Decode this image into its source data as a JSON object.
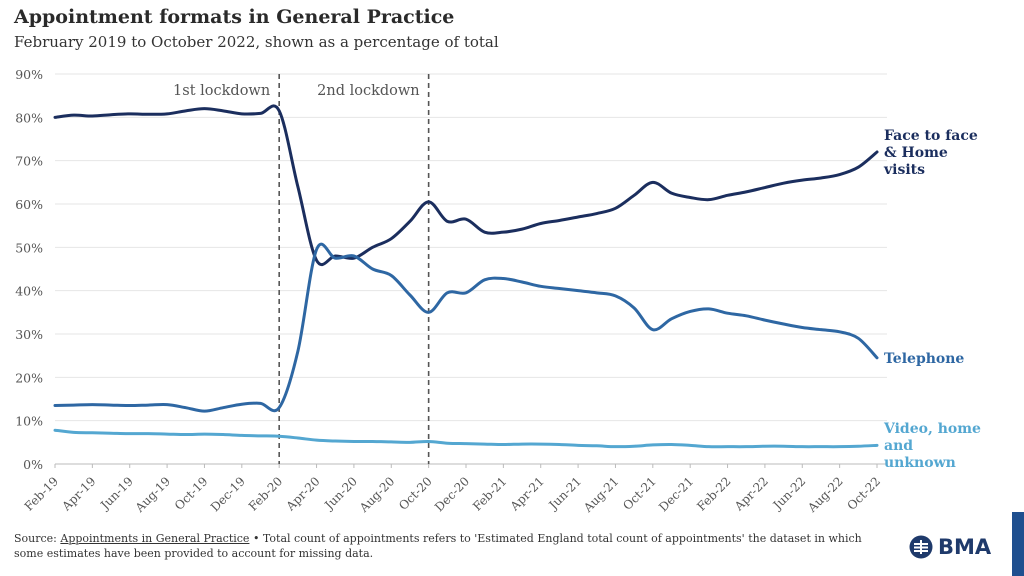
{
  "header": {
    "title": "Appointment formats in General Practice",
    "subtitle": "February 2019 to October 2022, shown as a percentage of total"
  },
  "footer": {
    "source_prefix": "Source: ",
    "source_link": "Appointments in General Practice",
    "source_rest": " • Total count of appointments refers to 'Estimated England total count of appointments' the dataset in which some estimates have been provided to account for missing data."
  },
  "logo": {
    "text": "BMA"
  },
  "colors": {
    "face_to_face": "#1b2e5e",
    "telephone": "#2e67a3",
    "video": "#54a7d1",
    "axis_text": "#555555",
    "grid": "#e6e6e6",
    "lockdown_line": "#555555"
  },
  "chart_data": {
    "type": "line",
    "title": "Appointment formats in General Practice",
    "subtitle": "February 2019 to October 2022, shown as a percentage of total",
    "xlabel": "",
    "ylabel": "",
    "ylim": [
      0,
      90
    ],
    "yticks": [
      0,
      10,
      20,
      30,
      40,
      50,
      60,
      70,
      80,
      90
    ],
    "ytick_labels": [
      "0%",
      "10%",
      "20%",
      "30%",
      "40%",
      "50%",
      "60%",
      "70%",
      "80%",
      "90%"
    ],
    "x_tick_labels": [
      "Feb-19",
      "Apr-19",
      "Jun-19",
      "Aug-19",
      "Oct-19",
      "Dec-19",
      "Feb-20",
      "Apr-20",
      "Jun-20",
      "Aug-20",
      "Oct-20",
      "Dec-20",
      "Feb-21",
      "Apr-21",
      "Jun-21",
      "Aug-21",
      "Oct-21",
      "Dec-21",
      "Feb-22",
      "Apr-22",
      "Jun-22",
      "Aug-22",
      "Oct-22"
    ],
    "months": [
      "Feb-19",
      "Mar-19",
      "Apr-19",
      "May-19",
      "Jun-19",
      "Jul-19",
      "Aug-19",
      "Sep-19",
      "Oct-19",
      "Nov-19",
      "Dec-19",
      "Jan-20",
      "Feb-20",
      "Mar-20",
      "Apr-20",
      "May-20",
      "Jun-20",
      "Jul-20",
      "Aug-20",
      "Sep-20",
      "Oct-20",
      "Nov-20",
      "Dec-20",
      "Jan-21",
      "Feb-21",
      "Mar-21",
      "Apr-21",
      "May-21",
      "Jun-21",
      "Jul-21",
      "Aug-21",
      "Sep-21",
      "Oct-21",
      "Nov-21",
      "Dec-21",
      "Jan-22",
      "Feb-22",
      "Mar-22",
      "Apr-22",
      "May-22",
      "Jun-22",
      "Jul-22",
      "Aug-22",
      "Sep-22",
      "Oct-22"
    ],
    "series": [
      {
        "name": "Face to face & Home visits",
        "label_lines": [
          "Face to face",
          "& Home",
          "visits"
        ],
        "color_key": "face_to_face",
        "values": [
          80,
          80.5,
          80.3,
          80.6,
          80.8,
          80.7,
          80.8,
          81.5,
          82,
          81.5,
          80.8,
          80.9,
          81.5,
          64,
          47,
          48,
          47.5,
          50,
          52,
          56,
          60.5,
          56,
          56.5,
          53.5,
          53.5,
          54.2,
          55.5,
          56.2,
          57,
          57.8,
          59,
          62,
          65,
          62.5,
          61.5,
          61,
          62,
          62.8,
          63.8,
          64.8,
          65.5,
          66,
          66.8,
          68.5,
          72
        ]
      },
      {
        "name": "Telephone",
        "label_lines": [
          "Telephone"
        ],
        "color_key": "telephone",
        "values": [
          13.5,
          13.6,
          13.7,
          13.6,
          13.5,
          13.6,
          13.7,
          13,
          12.2,
          13,
          13.8,
          14,
          13,
          26,
          49.5,
          47.5,
          48,
          45,
          43.5,
          39,
          35,
          39.5,
          39.5,
          42.5,
          42.8,
          42,
          41,
          40.5,
          40,
          39.5,
          38.8,
          36,
          31,
          33.5,
          35.2,
          35.8,
          34.8,
          34.2,
          33.2,
          32.3,
          31.5,
          31,
          30.5,
          29,
          24.5
        ]
      },
      {
        "name": "Video, home and unknown",
        "label_lines": [
          "Video, home",
          "and",
          "unknown"
        ],
        "color_key": "video",
        "values": [
          7.8,
          7.3,
          7.2,
          7.1,
          7,
          7,
          6.9,
          6.8,
          6.9,
          6.8,
          6.6,
          6.5,
          6.4,
          6,
          5.5,
          5.3,
          5.2,
          5.2,
          5.1,
          5,
          5.2,
          4.8,
          4.7,
          4.6,
          4.5,
          4.6,
          4.6,
          4.5,
          4.3,
          4.2,
          4,
          4.1,
          4.4,
          4.5,
          4.3,
          4,
          4,
          4,
          4.1,
          4.1,
          4,
          4,
          4,
          4.1,
          4.3
        ]
      }
    ],
    "annotations": [
      {
        "label": "1st lockdown",
        "at": "Feb-20",
        "text_side": "left"
      },
      {
        "label": "2nd lockdown",
        "at": "Oct-20",
        "text_side": "left"
      }
    ],
    "grid": true,
    "legend": "inline-right"
  }
}
